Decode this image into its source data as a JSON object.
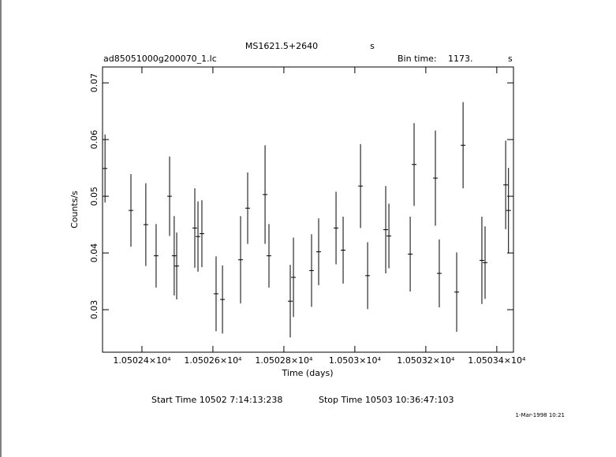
{
  "chart_data": {
    "type": "errorbar",
    "title": "MS1621.5+2640",
    "title_unit": "s",
    "subtitle": "ad85051000g200070_1.lc",
    "bin_time_label": "Bin time:",
    "bin_time": "1173.",
    "bin_time_unit": "s",
    "x_label": "Time (days)",
    "y_label": "Counts/s",
    "start_time": "Start Time 10502  7:14:13:238",
    "stop_time": "Stop Time 10503 10:36:47:103",
    "date": "1-Mar-1998 10:21",
    "color": "#000000",
    "xlim": [
      10502.289,
      10503.447
    ],
    "ylim": [
      0.0225,
      0.0728
    ],
    "xticks": [
      {
        "value": 10502.4,
        "label": "1.05024×10⁴"
      },
      {
        "value": 10502.6,
        "label": "1.05026×10⁴"
      },
      {
        "value": 10502.8,
        "label": "1.05028×10⁴"
      },
      {
        "value": 10503.0,
        "label": "1.0503×10⁴"
      },
      {
        "value": 10503.2,
        "label": "1.05032×10⁴"
      },
      {
        "value": 10503.4,
        "label": "1.05034×10⁴"
      }
    ],
    "yticks": [
      0.03,
      0.04,
      0.05,
      0.06,
      0.07
    ],
    "x": [
      10502.296,
      10502.369,
      10502.411,
      10502.44,
      10502.478,
      10502.491,
      10502.498,
      10502.549,
      10502.558,
      10502.569,
      10502.609,
      10502.627,
      10502.678,
      10502.698,
      10502.747,
      10502.758,
      10502.818,
      10502.827,
      10502.878,
      10502.898,
      10502.947,
      10502.967,
      10503.016,
      10503.036,
      10503.087,
      10503.096,
      10503.156,
      10503.167,
      10503.227,
      10503.238,
      10503.287,
      10503.305,
      10503.358,
      10503.367,
      10503.425,
      10503.433
    ],
    "values": [
      0.0549,
      0.0475,
      0.045,
      0.0395,
      0.05,
      0.0395,
      0.0377,
      0.0444,
      0.0429,
      0.0434,
      0.0328,
      0.0318,
      0.0388,
      0.0479,
      0.0503,
      0.0395,
      0.0315,
      0.0357,
      0.0369,
      0.0402,
      0.0444,
      0.0405,
      0.0518,
      0.036,
      0.0441,
      0.043,
      0.0398,
      0.0556,
      0.0532,
      0.0364,
      0.0331,
      0.059,
      0.0387,
      0.0383,
      0.052,
      0.0475
    ],
    "errors": [
      0.006,
      0.0064,
      0.0073,
      0.0056,
      0.007,
      0.007,
      0.0059,
      0.007,
      0.0062,
      0.0059,
      0.0066,
      0.006,
      0.0077,
      0.0063,
      0.0087,
      0.0056,
      0.0064,
      0.007,
      0.0064,
      0.0059,
      0.0064,
      0.0059,
      0.0074,
      0.0059,
      0.0077,
      0.0057,
      0.0066,
      0.0073,
      0.0084,
      0.006,
      0.007,
      0.0076,
      0.0077,
      0.0064,
      0.0078,
      0.0075
    ]
  }
}
